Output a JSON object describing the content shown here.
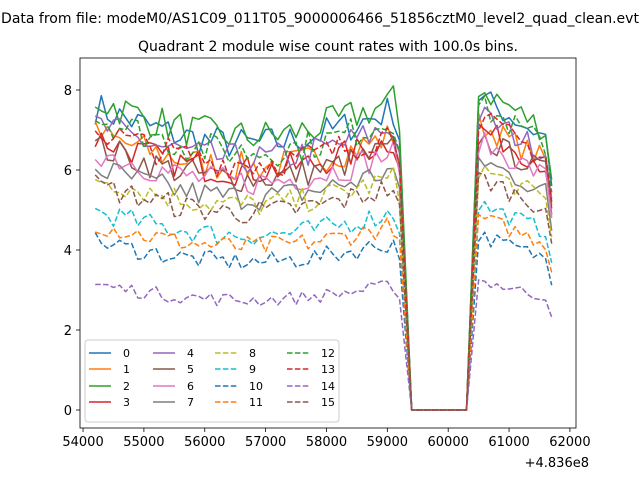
{
  "chart_data": {
    "type": "line",
    "suptitle": "Data from file: modeM0/AS1C09_011T05_9000006466_51856cztM0_level2_quad_clean.evt",
    "title": "Quadrant 2 module wise count rates with 100.0s bins.",
    "xlabel": "",
    "ylabel": "",
    "x_offset_label": "+4.836e8",
    "xlim": [
      53950,
      62100
    ],
    "ylim": [
      -0.45,
      8.8
    ],
    "x_ticks": [
      54000,
      55000,
      56000,
      57000,
      58000,
      59000,
      60000,
      61000,
      62000
    ],
    "y_ticks": [
      0,
      2,
      4,
      6,
      8
    ],
    "legend": {
      "position": "lower-left",
      "columns": 4
    },
    "x_segments": [
      {
        "start": 54200,
        "end": 59200,
        "step": 100
      },
      {
        "start": 59400,
        "end": 60300,
        "step": 100
      },
      {
        "start": 60500,
        "end": 61700,
        "step": 100
      }
    ],
    "series": [
      {
        "name": "0",
        "color": "#1f77b4",
        "dash": "solid",
        "level": 7.0
      },
      {
        "name": "1",
        "color": "#ff7f0e",
        "dash": "solid",
        "level": 6.4
      },
      {
        "name": "2",
        "color": "#2ca02c",
        "dash": "solid",
        "level": 7.2
      },
      {
        "name": "3",
        "color": "#d62728",
        "dash": "solid",
        "level": 6.3
      },
      {
        "name": "4",
        "color": "#9467bd",
        "dash": "solid",
        "level": 6.6
      },
      {
        "name": "5",
        "color": "#8c564b",
        "dash": "solid",
        "level": 6.1
      },
      {
        "name": "6",
        "color": "#e377c2",
        "dash": "solid",
        "level": 6.0
      },
      {
        "name": "7",
        "color": "#7f7f7f",
        "dash": "solid",
        "level": 5.6
      },
      {
        "name": "8",
        "color": "#bcbd22",
        "dash": "dashed",
        "level": 5.4
      },
      {
        "name": "9",
        "color": "#17becf",
        "dash": "dashed",
        "level": 4.6
      },
      {
        "name": "10",
        "color": "#1f77b4",
        "dash": "dashed",
        "level": 3.9
      },
      {
        "name": "11",
        "color": "#ff7f0e",
        "dash": "dashed",
        "level": 4.3
      },
      {
        "name": "12",
        "color": "#2ca02c",
        "dash": "dashed",
        "level": 6.8
      },
      {
        "name": "13",
        "color": "#d62728",
        "dash": "dashed",
        "level": 6.5
      },
      {
        "name": "14",
        "color": "#9467bd",
        "dash": "dashed",
        "level": 2.9
      },
      {
        "name": "15",
        "color": "#8c564b",
        "dash": "dashed",
        "level": 5.2
      }
    ]
  }
}
